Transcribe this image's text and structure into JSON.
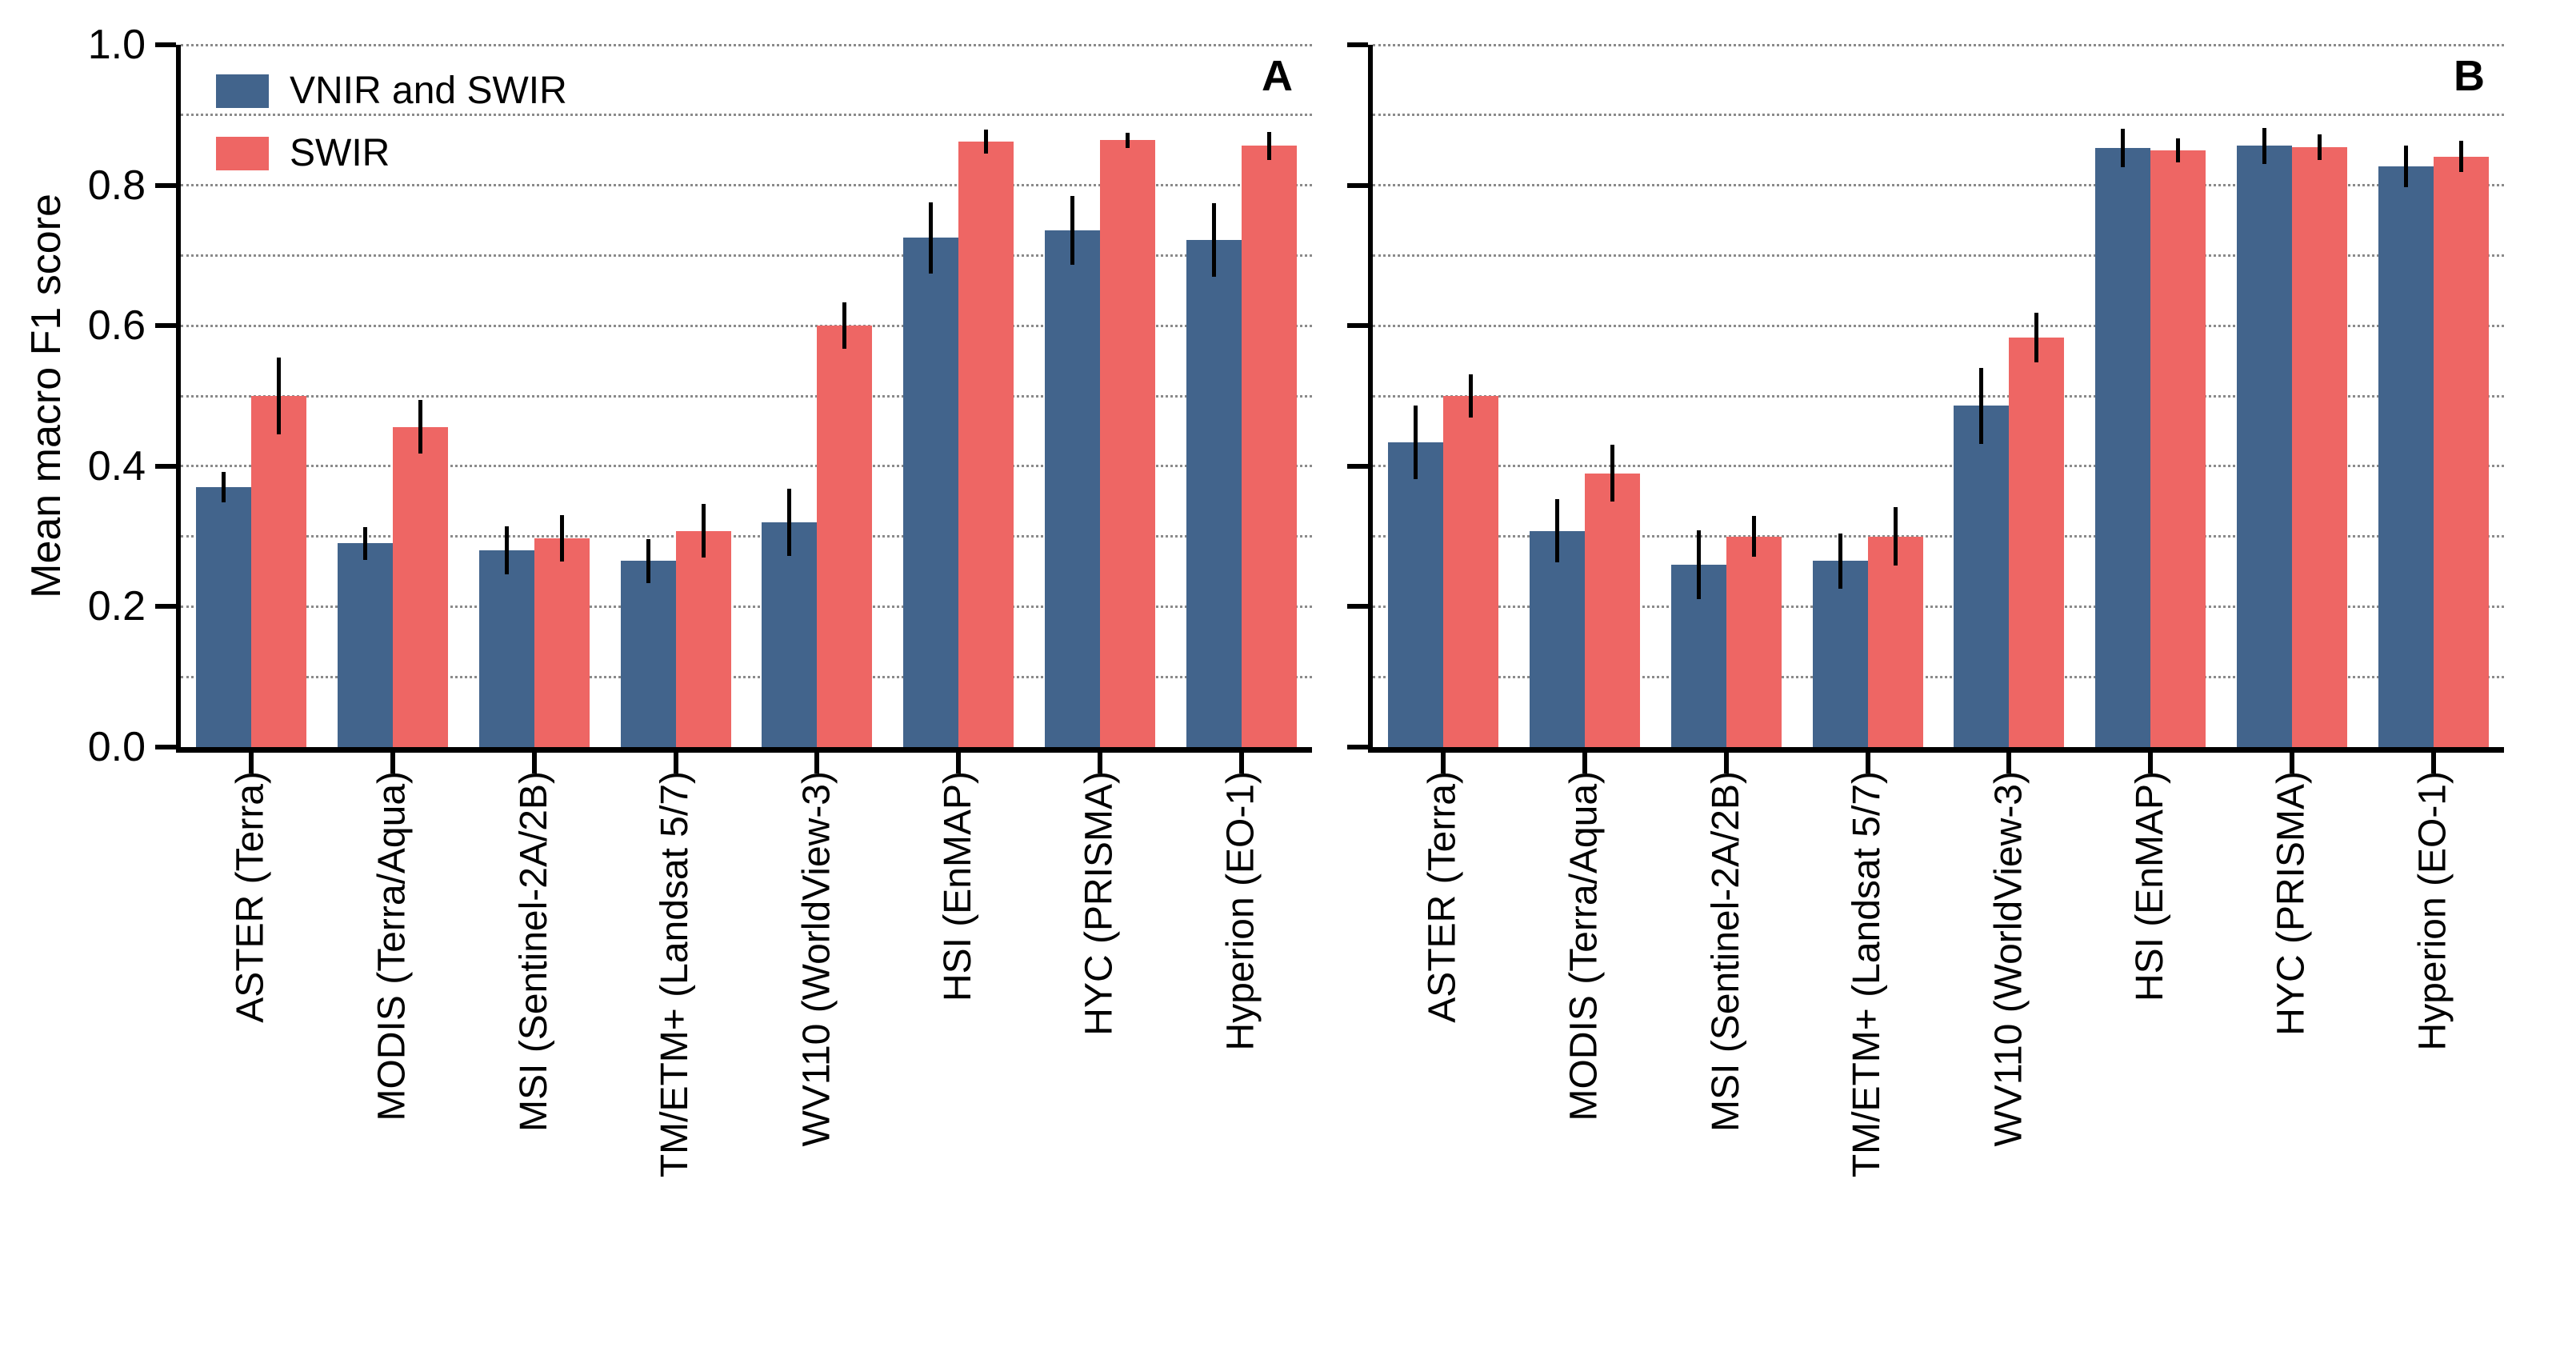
{
  "figure": {
    "ylabel": "Mean macro F1 score",
    "colors": {
      "vnir_swir": "#42648C",
      "swir": "#EE6664",
      "error_bar": "#000000",
      "gridline": "#8A8A8A",
      "axis": "#000000"
    },
    "legend": {
      "items": [
        {
          "label": "VNIR and SWIR",
          "color_key": "vnir_swir"
        },
        {
          "label": "SWIR",
          "color_key": "swir"
        }
      ]
    },
    "y_axis": {
      "min": 0.0,
      "max": 1.0,
      "tick_labels": [
        "0.0",
        "0.2",
        "0.4",
        "0.6",
        "0.8",
        "1.0"
      ],
      "major_tick_step": 0.2,
      "gridline_step": 0.1,
      "gridline_style": "dotted"
    }
  },
  "chart_data": [
    {
      "type": "bar",
      "panel_label": "A",
      "title": "",
      "xlabel": "",
      "ylabel": "Mean macro F1 score",
      "ylim": [
        0.0,
        1.0
      ],
      "grid": "horizontal dotted lines every 0.1",
      "legend_position": "upper left",
      "error_bars": true,
      "categories": [
        "ASTER (Terra)",
        "MODIS (Terra/Aqua)",
        "MSI (Sentinel-2A/2B)",
        "TM/ETM+ (Landsat 5/7)",
        "WV110 (WorldView-3)",
        "HSI (EnMAP)",
        "HYC (PRISMA)",
        "Hyperion (EO-1)"
      ],
      "series": [
        {
          "name": "VNIR and SWIR",
          "color": "#42648C",
          "values": [
            0.37,
            0.29,
            0.28,
            0.265,
            0.32,
            0.725,
            0.736,
            0.722
          ],
          "errors": [
            0.022,
            0.023,
            0.034,
            0.031,
            0.048,
            0.051,
            0.049,
            0.052
          ]
        },
        {
          "name": "SWIR",
          "color": "#EE6664",
          "values": [
            0.5,
            0.456,
            0.297,
            0.308,
            0.6,
            0.862,
            0.864,
            0.856
          ],
          "errors": [
            0.055,
            0.038,
            0.033,
            0.038,
            0.033,
            0.017,
            0.011,
            0.02
          ]
        }
      ]
    },
    {
      "type": "bar",
      "panel_label": "B",
      "title": "",
      "xlabel": "",
      "ylabel": "",
      "ylim": [
        0.0,
        1.0
      ],
      "grid": "horizontal dotted lines every 0.1",
      "legend_position": "none",
      "error_bars": true,
      "categories": [
        "ASTER (Terra)",
        "MODIS (Terra/Aqua)",
        "MSI (Sentinel-2A/2B)",
        "TM/ETM+ (Landsat 5/7)",
        "WV110 (WorldView-3)",
        "HSI (EnMAP)",
        "HYC (PRISMA)",
        "Hyperion (EO-1)"
      ],
      "series": [
        {
          "name": "VNIR and SWIR",
          "color": "#42648C",
          "values": [
            0.434,
            0.308,
            0.26,
            0.265,
            0.486,
            0.853,
            0.856,
            0.827
          ],
          "errors": [
            0.052,
            0.045,
            0.049,
            0.039,
            0.054,
            0.027,
            0.026,
            0.03
          ]
        },
        {
          "name": "SWIR",
          "color": "#EE6664",
          "values": [
            0.5,
            0.39,
            0.3,
            0.3,
            0.583,
            0.85,
            0.854,
            0.841
          ],
          "errors": [
            0.031,
            0.04,
            0.029,
            0.042,
            0.035,
            0.017,
            0.018,
            0.022
          ]
        }
      ]
    }
  ]
}
